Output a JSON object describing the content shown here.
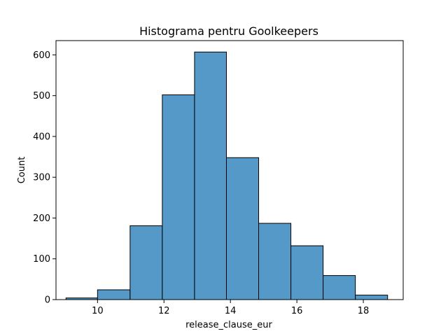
{
  "chart_data": {
    "type": "bar",
    "title": "Histograma pentru Goolkeepers",
    "xlabel": "release_clause_eur",
    "ylabel": "Count",
    "xlim": [
      8.75,
      19.2
    ],
    "ylim": [
      0,
      635
    ],
    "x_ticks": [
      10,
      12,
      14,
      16,
      18
    ],
    "y_ticks": [
      0,
      100,
      200,
      300,
      400,
      500,
      600
    ],
    "bins": [
      {
        "start": 9.05,
        "end": 10.0,
        "value": 4
      },
      {
        "start": 10.0,
        "end": 10.98,
        "value": 24
      },
      {
        "start": 10.98,
        "end": 11.95,
        "value": 181
      },
      {
        "start": 11.95,
        "end": 12.92,
        "value": 502
      },
      {
        "start": 12.92,
        "end": 13.88,
        "value": 607
      },
      {
        "start": 13.88,
        "end": 14.85,
        "value": 348
      },
      {
        "start": 14.85,
        "end": 15.82,
        "value": 187
      },
      {
        "start": 15.82,
        "end": 16.79,
        "value": 132
      },
      {
        "start": 16.79,
        "end": 17.76,
        "value": 59
      },
      {
        "start": 17.76,
        "end": 18.73,
        "value": 11
      }
    ],
    "bar_color": "#5499c7",
    "edge_color": "#000000",
    "grid": false,
    "legend": "none"
  }
}
